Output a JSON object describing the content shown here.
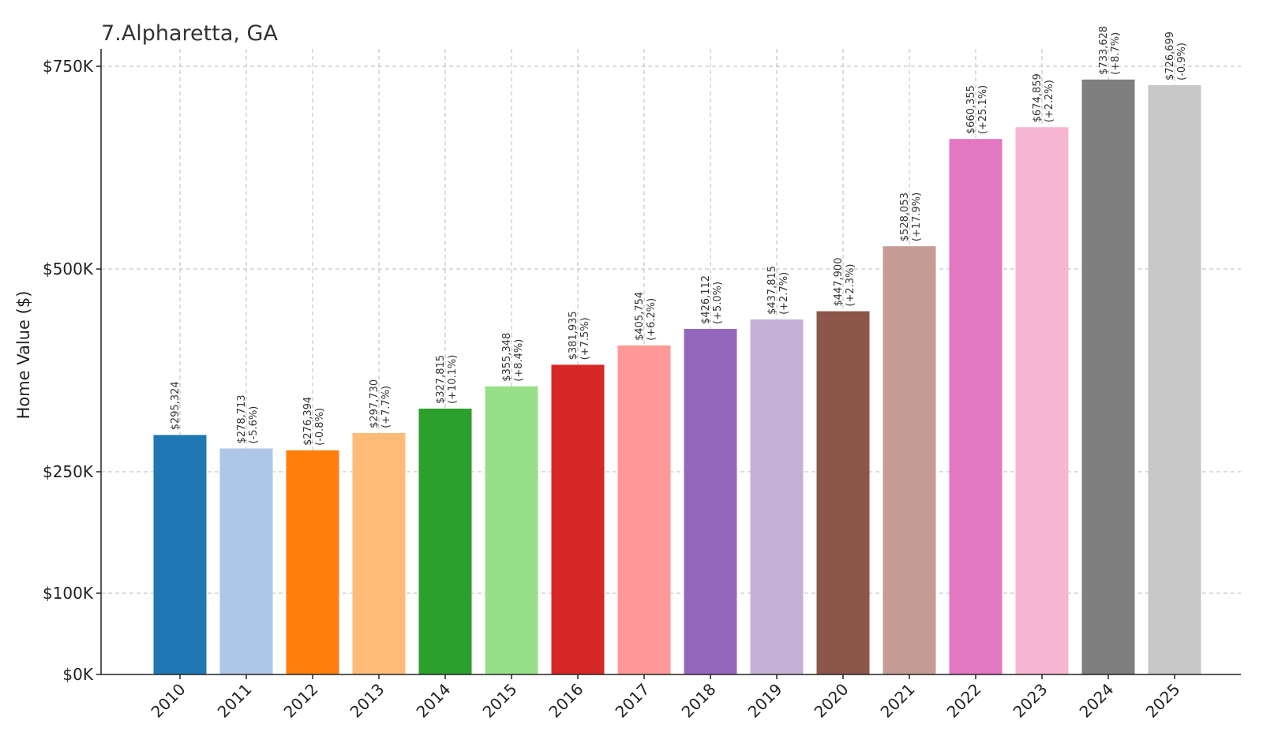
{
  "chart_data": {
    "type": "bar",
    "title": "7.Alpharetta, GA",
    "xlabel": "",
    "ylabel": "Home Value ($)",
    "categories": [
      "2010",
      "2011",
      "2012",
      "2013",
      "2014",
      "2015",
      "2016",
      "2017",
      "2018",
      "2019",
      "2020",
      "2021",
      "2022",
      "2023",
      "2024",
      "2025"
    ],
    "values": [
      295324,
      278713,
      276394,
      297730,
      327815,
      355348,
      381935,
      405754,
      426112,
      437815,
      447900,
      528053,
      660355,
      674859,
      733628,
      726699
    ],
    "value_labels": [
      "$295,324",
      "$278,713",
      "$276,394",
      "$297,730",
      "$327,815",
      "$355,348",
      "$381,935",
      "$405,754",
      "$426,112",
      "$437,815",
      "$447,900",
      "$528,053",
      "$660,355",
      "$674,859",
      "$733,628",
      "$726,699"
    ],
    "change_labels": [
      "",
      "(-5.6%)",
      "(-0.8%)",
      "(+7.7%)",
      "(+10.1%)",
      "(+8.4%)",
      "(+7.5%)",
      "(+6.2%)",
      "(+5.0%)",
      "(+2.7%)",
      "(+2.3%)",
      "(+17.9%)",
      "(+25.1%)",
      "(+2.2%)",
      "(+8.7%)",
      "(-0.9%)"
    ],
    "colors": [
      "#1f77b4",
      "#aec7e8",
      "#ff7f0e",
      "#ffbb78",
      "#2ca02c",
      "#98df8a",
      "#d62728",
      "#ff9896",
      "#9467bd",
      "#c5b0d5",
      "#8c564b",
      "#c49c94",
      "#e377c2",
      "#f7b6d2",
      "#7f7f7f",
      "#c7c7c7"
    ],
    "yticks": [
      0,
      100000,
      250000,
      500000,
      750000
    ],
    "ytick_labels": [
      "$0K",
      "$100K",
      "$250K",
      "$500K",
      "$750K"
    ],
    "ylim": [
      0,
      750000
    ],
    "grid": true
  }
}
